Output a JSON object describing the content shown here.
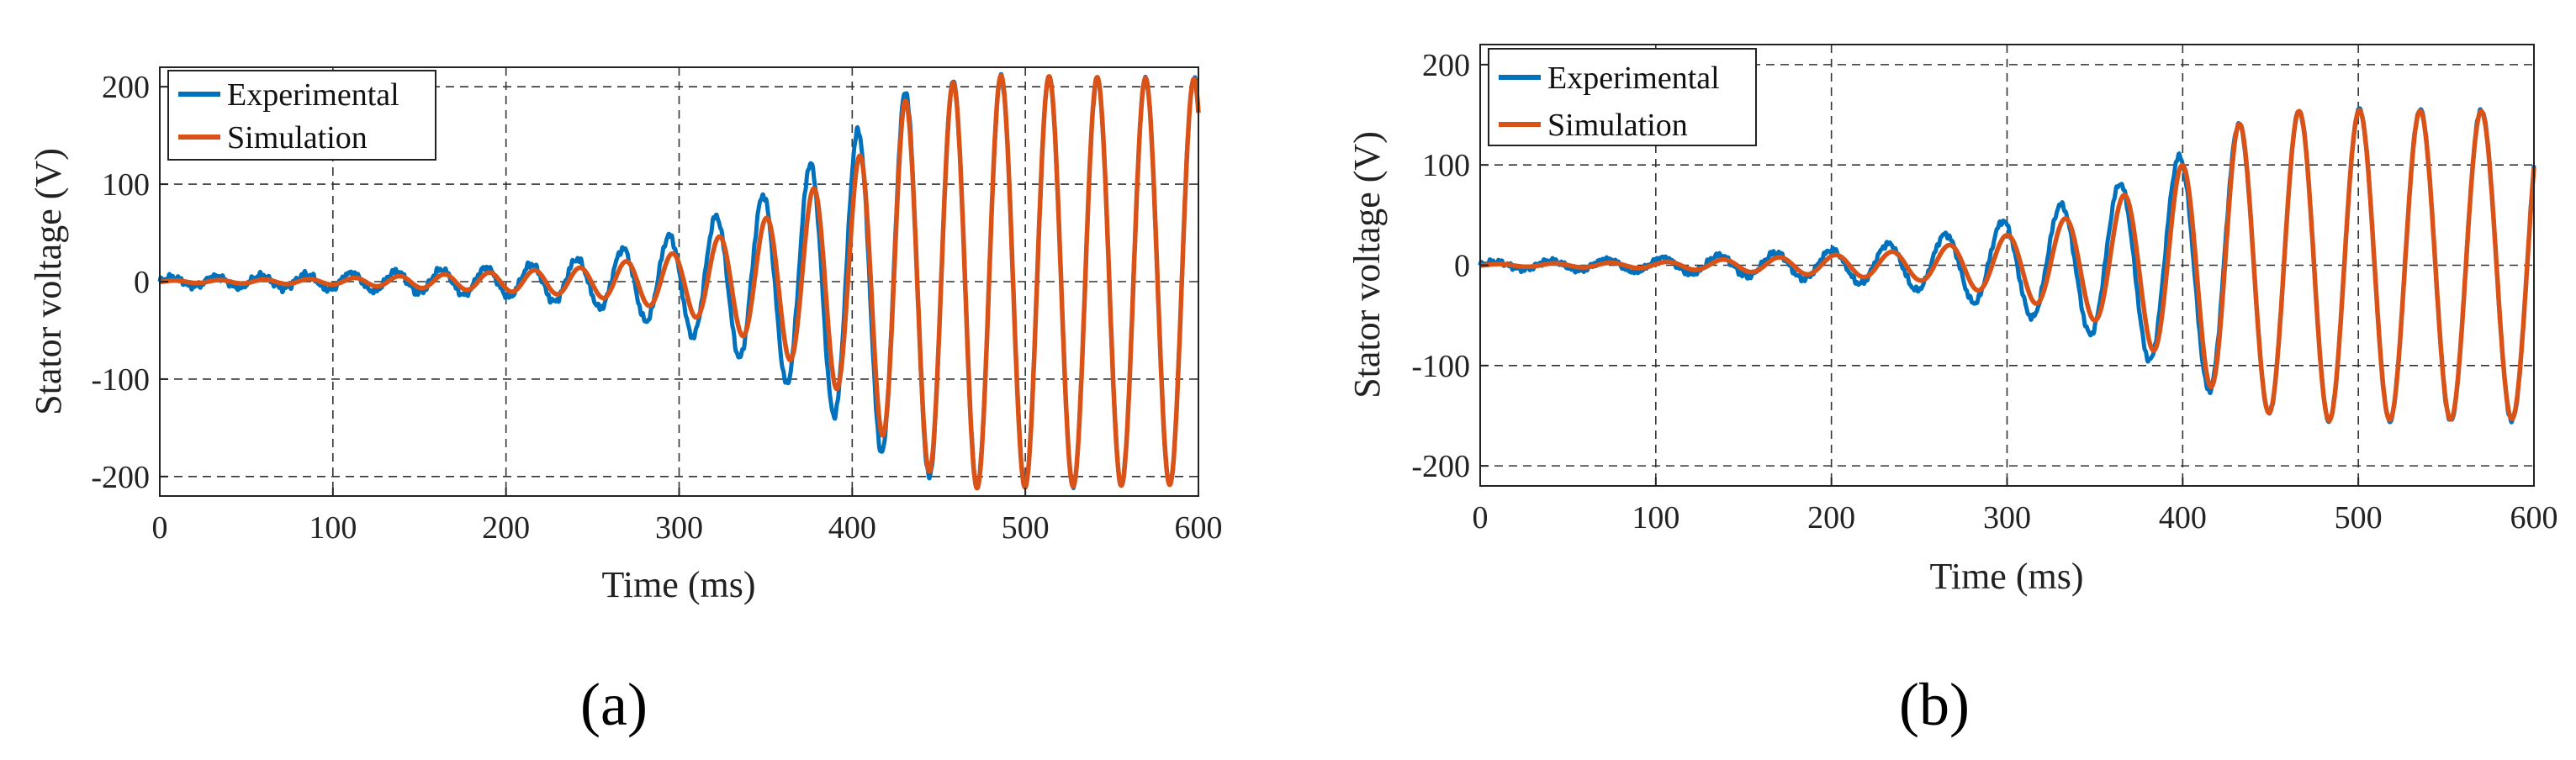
{
  "chart_data": [
    {
      "type": "line",
      "panel_label": "(a)",
      "title": "",
      "xlabel": "Time (ms)",
      "ylabel": "Stator voltage (V)",
      "xlim": [
        0,
        600
      ],
      "ylim": [
        -220,
        220
      ],
      "grid": true,
      "legend_position": "top-left",
      "xticks": [
        0,
        100,
        200,
        300,
        400,
        500,
        600
      ],
      "yticks": [
        -200,
        -100,
        0,
        100,
        200
      ],
      "series": [
        {
          "name": "Experimental",
          "color": "#0072BD",
          "model": "growing-sinusoid",
          "offset": 0,
          "amp_points": [
            [
              0,
              4
            ],
            [
              100,
              8
            ],
            [
              200,
              15
            ],
            [
              250,
              25
            ],
            [
              300,
              50
            ],
            [
              350,
              90
            ],
            [
              400,
              150
            ],
            [
              430,
              195
            ],
            [
              470,
              210
            ],
            [
              600,
              208
            ]
          ],
          "period_points": [
            [
              0,
              26
            ],
            [
              200,
              26
            ],
            [
              300,
              27
            ],
            [
              400,
              27.5
            ],
            [
              600,
              28
            ]
          ],
          "noise": 3
        },
        {
          "name": "Simulation",
          "color": "#D95319",
          "model": "growing-sinusoid",
          "offset": 0,
          "amp_points": [
            [
              0,
              1
            ],
            [
              100,
              3
            ],
            [
              200,
              10
            ],
            [
              250,
              15
            ],
            [
              300,
              30
            ],
            [
              350,
              65
            ],
            [
              400,
              120
            ],
            [
              430,
              185
            ],
            [
              470,
              212
            ],
            [
              600,
              208
            ]
          ],
          "period_points": [
            [
              0,
              26
            ],
            [
              200,
              26
            ],
            [
              300,
              27
            ],
            [
              400,
              27.5
            ],
            [
              600,
              28
            ]
          ],
          "phase_shift_deg": [
            [
              0,
              25
            ],
            [
              380,
              25
            ],
            [
              430,
              0
            ],
            [
              600,
              0
            ]
          ],
          "noise": 0
        }
      ]
    },
    {
      "type": "line",
      "panel_label": "(b)",
      "title": "",
      "xlabel": "Time (ms)",
      "ylabel": "Stator voltage (V)",
      "xlim": [
        0,
        600
      ],
      "ylim": [
        -220,
        220
      ],
      "grid": true,
      "legend_position": "top-left",
      "xticks": [
        0,
        100,
        200,
        300,
        400,
        500,
        600
      ],
      "yticks": [
        -200,
        -100,
        0,
        100,
        200
      ],
      "series": [
        {
          "name": "Experimental",
          "color": "#0072BD",
          "model": "growing-sinusoid",
          "offset": 0,
          "amp_points": [
            [
              0,
              3
            ],
            [
              100,
              7
            ],
            [
              200,
              15
            ],
            [
              250,
              25
            ],
            [
              300,
              45
            ],
            [
              350,
              70
            ],
            [
              400,
              110
            ],
            [
              430,
              140
            ],
            [
              470,
              155
            ],
            [
              600,
              155
            ]
          ],
          "period_points": [
            [
              0,
              32
            ],
            [
              200,
              32
            ],
            [
              300,
              33
            ],
            [
              400,
              34
            ],
            [
              600,
              35
            ]
          ],
          "noise": 2.5
        },
        {
          "name": "Simulation",
          "color": "#D95319",
          "model": "growing-sinusoid",
          "offset": 0,
          "amp_points": [
            [
              0,
              1
            ],
            [
              100,
              3
            ],
            [
              200,
              10
            ],
            [
              250,
              15
            ],
            [
              300,
              30
            ],
            [
              350,
              55
            ],
            [
              400,
              100
            ],
            [
              430,
              140
            ],
            [
              470,
              155
            ],
            [
              600,
              153
            ]
          ],
          "period_points": [
            [
              0,
              32
            ],
            [
              200,
              32
            ],
            [
              300,
              33
            ],
            [
              400,
              34
            ],
            [
              600,
              35
            ]
          ],
          "phase_shift_deg": [
            [
              0,
              25
            ],
            [
              380,
              25
            ],
            [
              440,
              0
            ],
            [
              600,
              0
            ]
          ],
          "noise": 0
        }
      ]
    }
  ]
}
